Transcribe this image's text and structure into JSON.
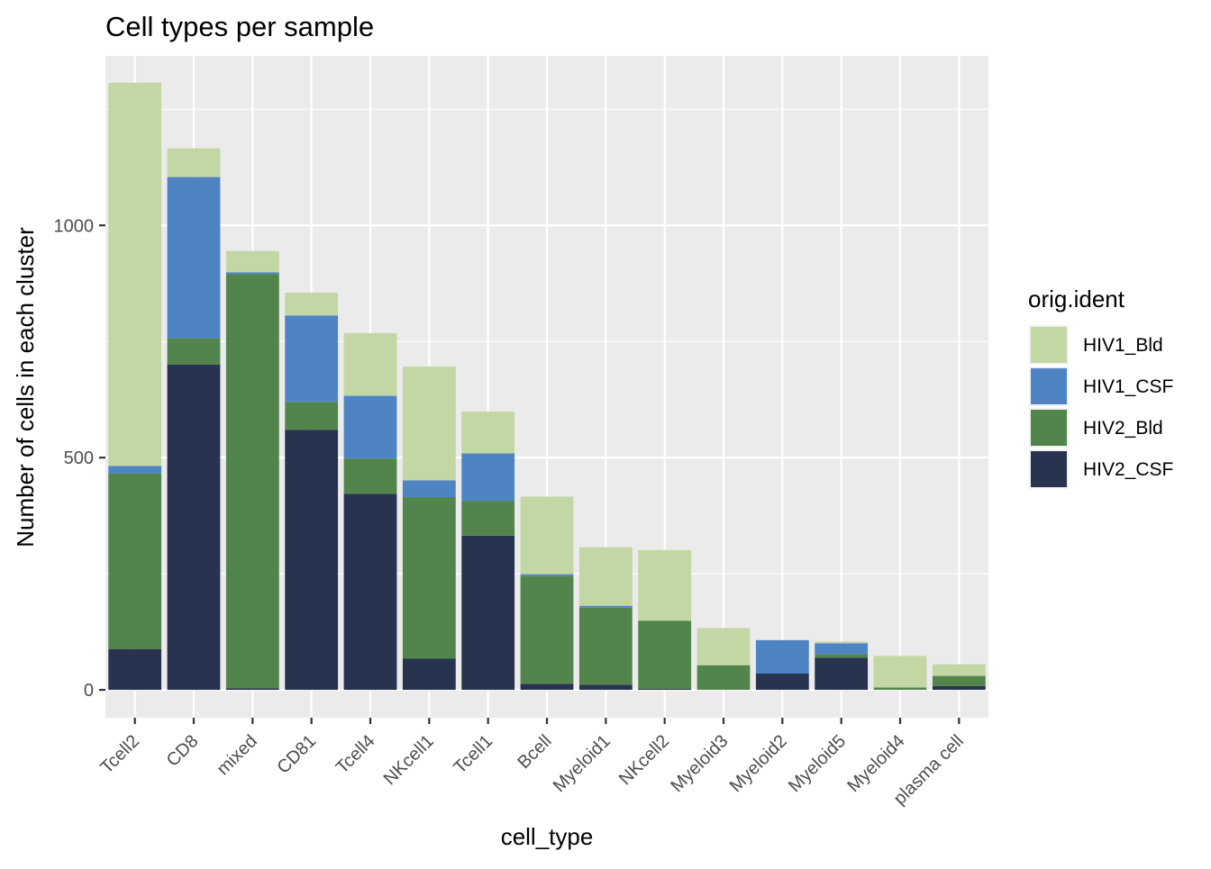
{
  "chart_data": {
    "type": "bar",
    "stacked": true,
    "title": "Cell types per sample",
    "xlabel": "cell_type",
    "ylabel": "Number of cells in each cluster",
    "ylim": [
      -60,
      1365
    ],
    "yticks": [
      0,
      500,
      1000
    ],
    "grid": true,
    "legend": {
      "title": "orig.ident",
      "placement": "right"
    },
    "categories": [
      "Tcell2",
      "CD8",
      "mixed",
      "CD81",
      "Tcell4",
      "NKcell1",
      "Tcell1",
      "Bcell",
      "Myeloid1",
      "NKcell2",
      "Myeloid3",
      "Myeloid2",
      "Myeloid5",
      "Myeloid4",
      "plasma cell"
    ],
    "series": [
      {
        "name": "HIV2_CSF",
        "color": "#283350",
        "values": [
          88,
          700,
          3,
          560,
          422,
          67,
          332,
          13,
          11,
          2,
          0,
          35,
          69,
          0,
          8
        ]
      },
      {
        "name": "HIV2_Bld",
        "color": "#52854C",
        "values": [
          378,
          57,
          892,
          60,
          76,
          348,
          75,
          232,
          166,
          147,
          53,
          0,
          8,
          5,
          22
        ]
      },
      {
        "name": "HIV1_CSF",
        "color": "#4E84C4",
        "values": [
          16,
          347,
          4,
          186,
          135,
          36,
          102,
          4,
          4,
          0,
          0,
          72,
          23,
          0,
          0
        ]
      },
      {
        "name": "HIV1_Bld",
        "color": "#C3D7A4",
        "values": [
          825,
          62,
          46,
          49,
          135,
          245,
          90,
          167,
          126,
          152,
          80,
          0,
          4,
          68,
          25
        ]
      }
    ],
    "legend_order": [
      "HIV1_Bld",
      "HIV1_CSF",
      "HIV2_Bld",
      "HIV2_CSF"
    ]
  }
}
